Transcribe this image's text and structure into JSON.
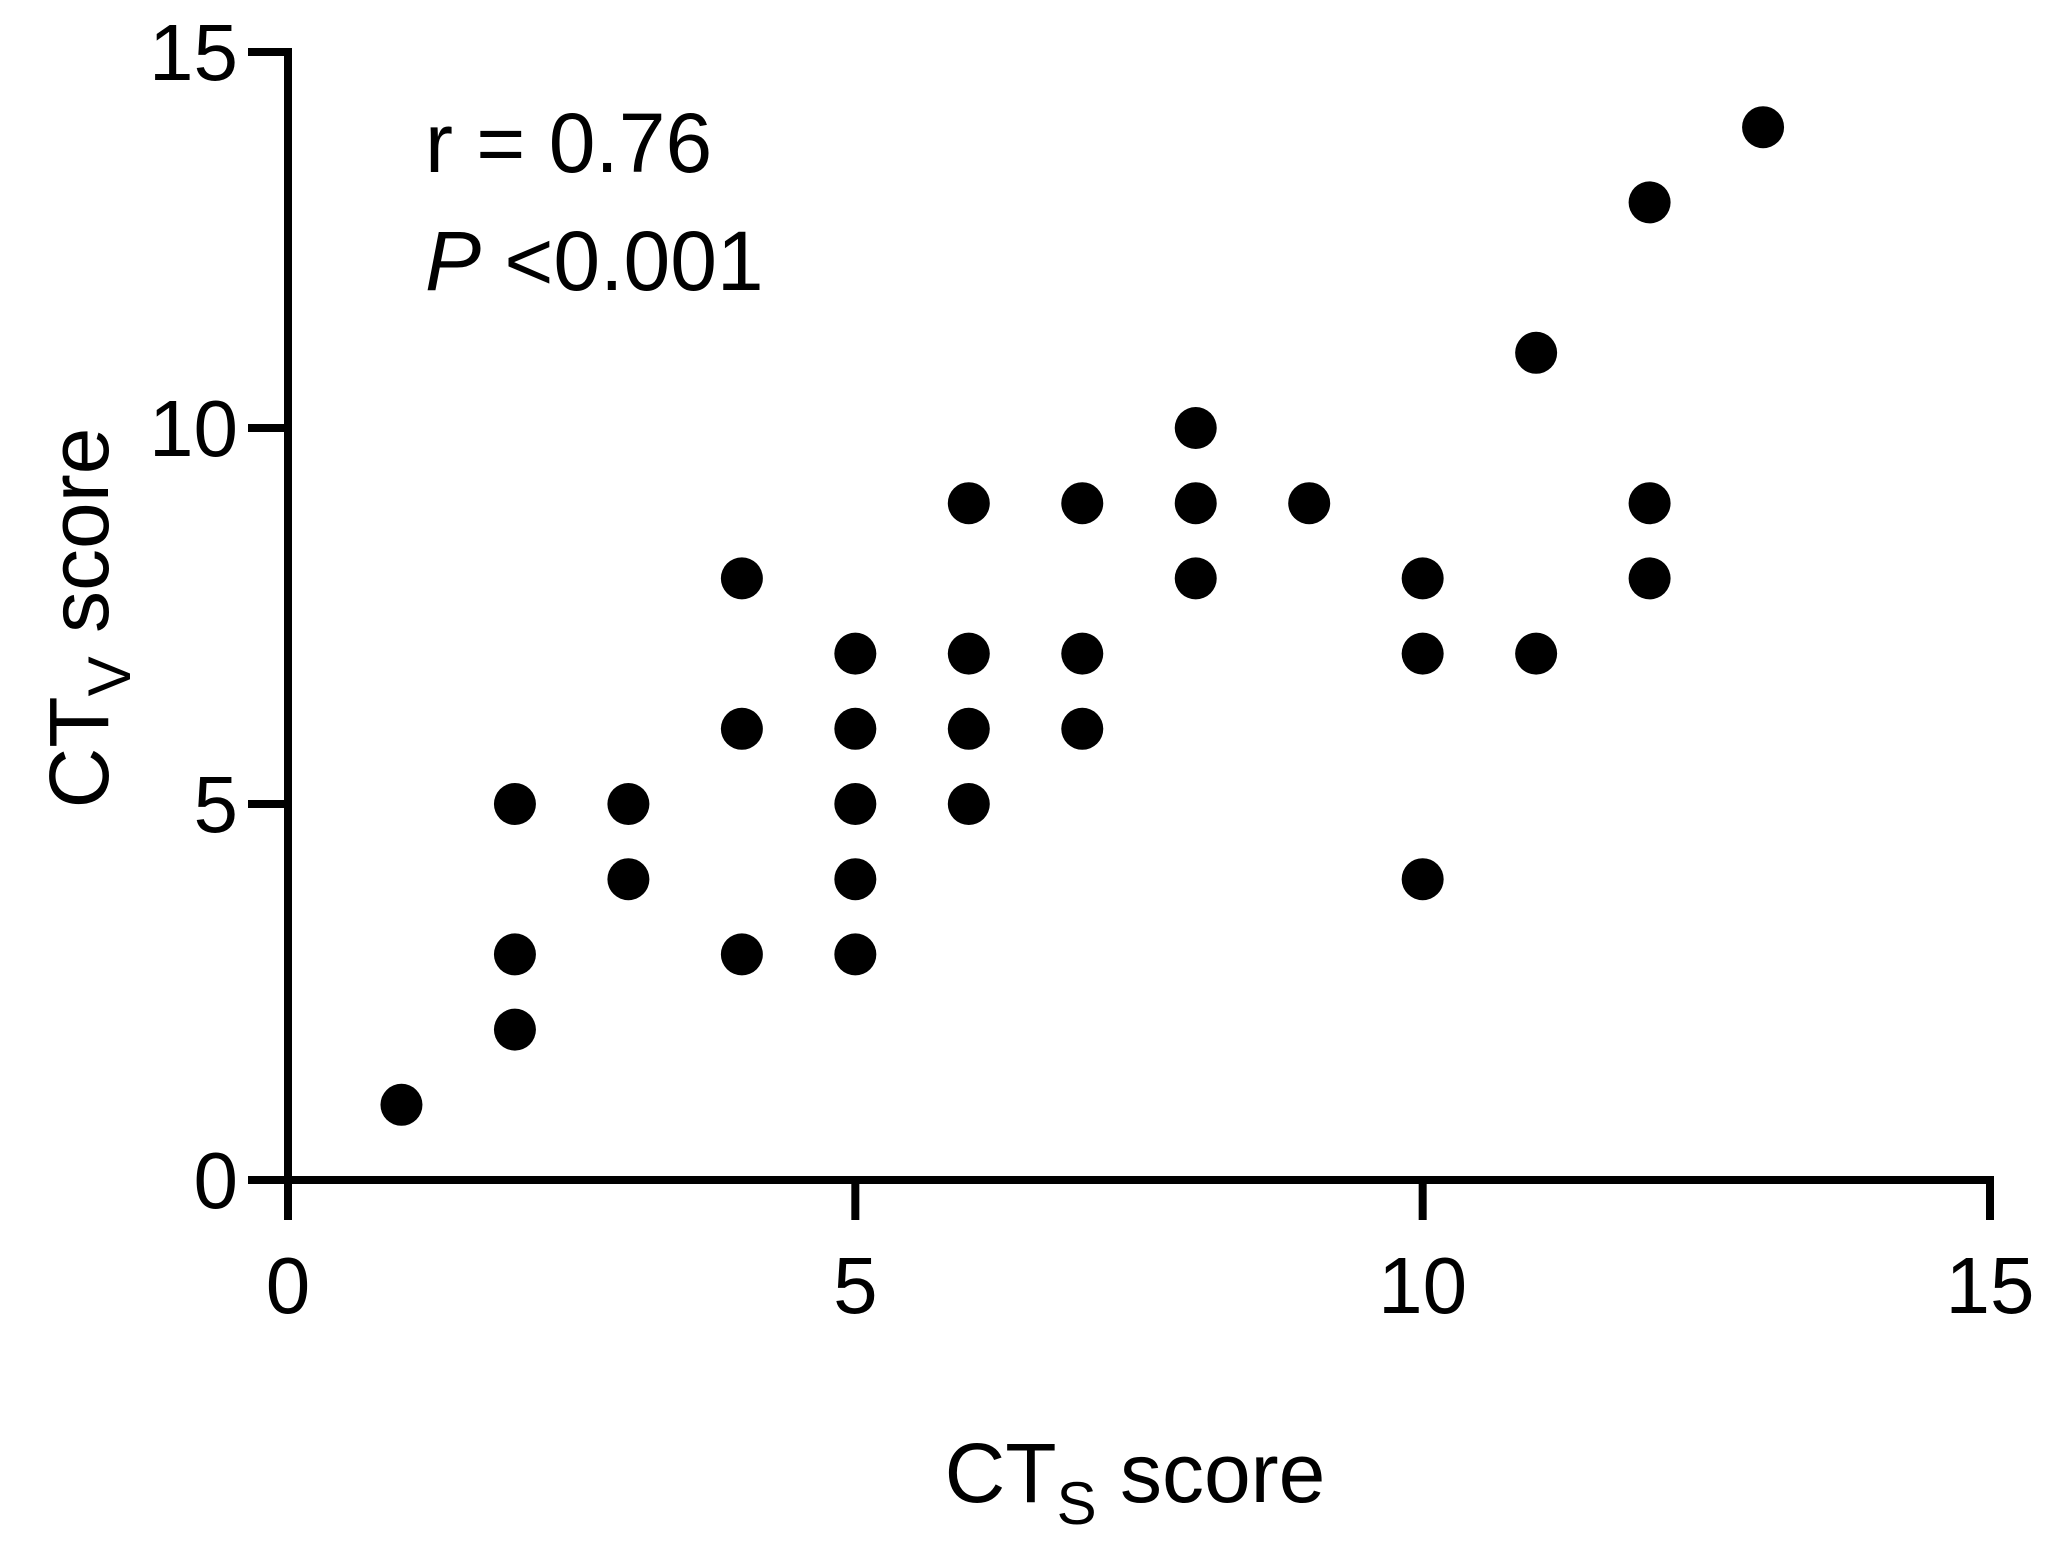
{
  "chart_data": {
    "type": "scatter",
    "title": "",
    "xlabel": {
      "main": "CT",
      "subscript": "S",
      "suffix": " score"
    },
    "ylabel": {
      "main": "CT",
      "subscript": "V",
      "suffix": " score"
    },
    "xlim": [
      0,
      15
    ],
    "ylim": [
      0,
      15
    ],
    "xticks": [
      "0",
      "5",
      "10",
      "15"
    ],
    "yticks": [
      "0",
      "5",
      "10",
      "15"
    ],
    "grid": false,
    "annotations": {
      "r_text": "r = 0.76",
      "p_symbol": "P",
      "p_text": " <0.001"
    },
    "points": [
      {
        "x": 1,
        "y": 1
      },
      {
        "x": 2,
        "y": 2
      },
      {
        "x": 2,
        "y": 3
      },
      {
        "x": 2,
        "y": 5
      },
      {
        "x": 3,
        "y": 4
      },
      {
        "x": 3,
        "y": 5
      },
      {
        "x": 4,
        "y": 3
      },
      {
        "x": 4,
        "y": 6
      },
      {
        "x": 4,
        "y": 8
      },
      {
        "x": 5,
        "y": 3
      },
      {
        "x": 5,
        "y": 4
      },
      {
        "x": 5,
        "y": 5
      },
      {
        "x": 5,
        "y": 6
      },
      {
        "x": 5,
        "y": 7
      },
      {
        "x": 6,
        "y": 5
      },
      {
        "x": 6,
        "y": 6
      },
      {
        "x": 6,
        "y": 7
      },
      {
        "x": 6,
        "y": 9
      },
      {
        "x": 7,
        "y": 6
      },
      {
        "x": 7,
        "y": 7
      },
      {
        "x": 7,
        "y": 9
      },
      {
        "x": 8,
        "y": 8
      },
      {
        "x": 8,
        "y": 9
      },
      {
        "x": 8,
        "y": 10
      },
      {
        "x": 9,
        "y": 9
      },
      {
        "x": 10,
        "y": 4
      },
      {
        "x": 10,
        "y": 7
      },
      {
        "x": 10,
        "y": 8
      },
      {
        "x": 11,
        "y": 7
      },
      {
        "x": 11,
        "y": 11
      },
      {
        "x": 12,
        "y": 8
      },
      {
        "x": 12,
        "y": 9
      },
      {
        "x": 12,
        "y": 13
      },
      {
        "x": 13,
        "y": 14
      }
    ],
    "marker_color": "#000000",
    "axis_color": "#000000"
  }
}
